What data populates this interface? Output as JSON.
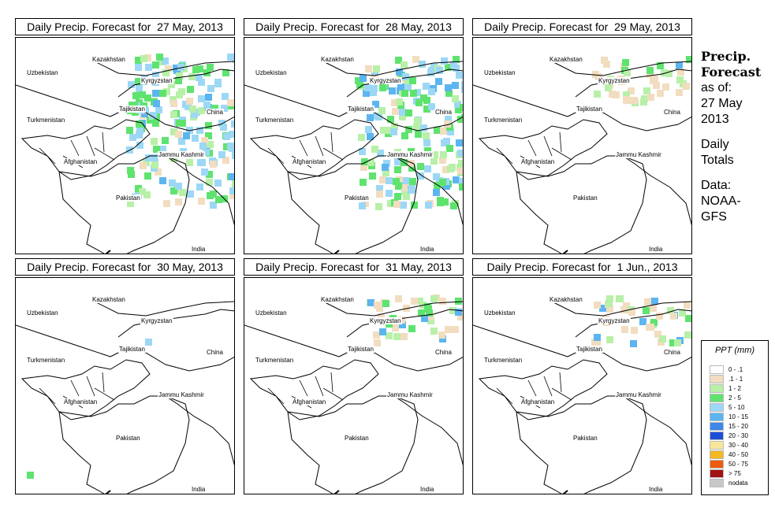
{
  "panels": [
    {
      "title": "Daily Precip. Forecast for  27 May, 2013",
      "intensity": 3
    },
    {
      "title": "Daily Precip. Forecast for  28 May, 2013",
      "intensity": 3
    },
    {
      "title": "Daily Precip. Forecast for  29 May, 2013",
      "intensity": 1
    },
    {
      "title": "Daily Precip. Forecast for  30 May, 2013",
      "intensity": 0
    },
    {
      "title": "Daily Precip. Forecast for  31 May, 2013",
      "intensity": 1
    },
    {
      "title": "Daily Precip. Forecast for  1 Jun., 2013",
      "intensity": 1
    }
  ],
  "labels": {
    "kazakhstan": "Kazakhstan",
    "uzbekistan": "Uzbekistan",
    "kyrgyzstan": "Kyrgyzstan",
    "tajikistan": "Tajikistan",
    "turkmenistan": "Turkmenistan",
    "china": "China",
    "afghanistan": "Afghanistan",
    "jammu": "Jammu Kashmir",
    "pakistan": "Pakistan",
    "india": "India"
  },
  "side": {
    "title_line1": "Precip.",
    "title_line2": "Forecast",
    "asof": "as of:",
    "date_line1": "27 May",
    "date_line2": "2013",
    "daily1": "Daily",
    "daily2": "Totals",
    "data1": "Data:",
    "data2": "NOAA-",
    "data3": "GFS"
  },
  "legend": {
    "title": "PPT (mm)",
    "items": [
      {
        "label": "0 - .1",
        "color": "#ffffff"
      },
      {
        "label": ".1 - 1",
        "color": "#f2ddc0"
      },
      {
        "label": "1 - 2",
        "color": "#b8f0a8"
      },
      {
        "label": "2 - 5",
        "color": "#5fe36f"
      },
      {
        "label": "5 - 10",
        "color": "#9cd8f5"
      },
      {
        "label": "10 - 15",
        "color": "#5cb5f0"
      },
      {
        "label": "15 - 20",
        "color": "#3d86ea"
      },
      {
        "label": "20 - 30",
        "color": "#1d4fd6"
      },
      {
        "label": "30 - 40",
        "color": "#f7e79a"
      },
      {
        "label": "40 - 50",
        "color": "#f5b722"
      },
      {
        "label": "50 - 75",
        "color": "#ee5a10"
      },
      {
        "label": "> 75",
        "color": "#a11212"
      },
      {
        "label": "nodata",
        "color": "#c8c8c8"
      }
    ]
  }
}
